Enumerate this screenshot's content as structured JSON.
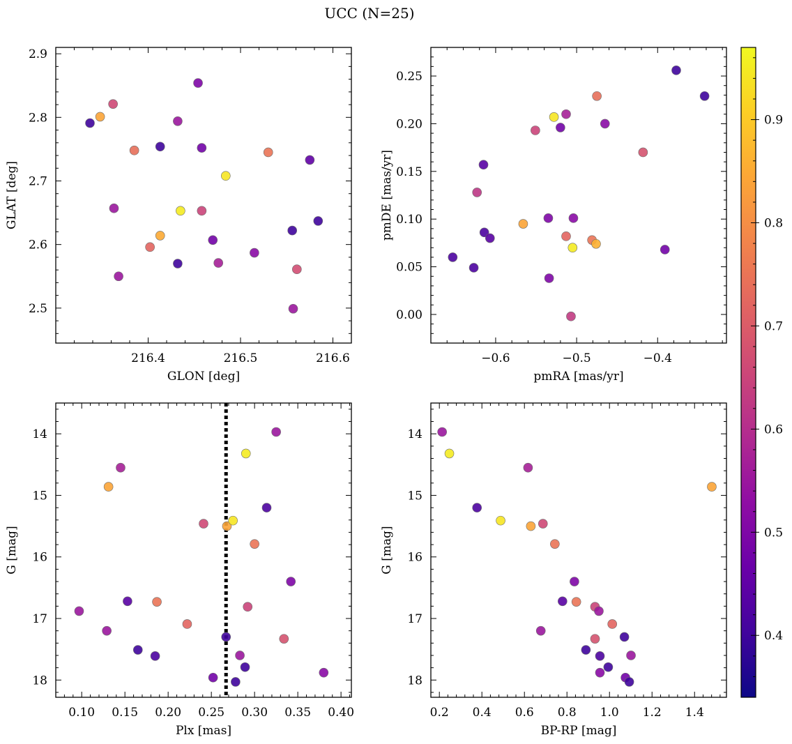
{
  "figure": {
    "title": "UCC (N=25)"
  },
  "colorbar": {
    "cmap": "plasma",
    "range": [
      0.34,
      0.97
    ],
    "ticks": [
      0.4,
      0.5,
      0.6,
      0.7,
      0.8,
      0.9
    ]
  },
  "chart_data": [
    {
      "type": "scatter",
      "panel": "top-left",
      "xlabel": "GLON [deg]",
      "ylabel": "GLAT [deg]",
      "xlim": [
        216.3,
        216.62
      ],
      "ylim": [
        2.445,
        2.91
      ],
      "xticks": [
        216.4,
        216.5,
        216.6
      ],
      "xtick_labels": [
        "216.4",
        "216.5",
        "216.6"
      ],
      "yticks": [
        2.5,
        2.6,
        2.7,
        2.8,
        2.9
      ],
      "ytick_labels": [
        "2.5",
        "2.6",
        "2.7",
        "2.8",
        "2.9"
      ],
      "inverted_y": false,
      "points": [
        {
          "x": 216.337,
          "y": 2.791,
          "c": 0.4
        },
        {
          "x": 216.348,
          "y": 2.801,
          "c": 0.84
        },
        {
          "x": 216.362,
          "y": 2.821,
          "c": 0.66
        },
        {
          "x": 216.363,
          "y": 2.657,
          "c": 0.55
        },
        {
          "x": 216.368,
          "y": 2.55,
          "c": 0.55
        },
        {
          "x": 216.385,
          "y": 2.748,
          "c": 0.74
        },
        {
          "x": 216.402,
          "y": 2.596,
          "c": 0.72
        },
        {
          "x": 216.413,
          "y": 2.754,
          "c": 0.4
        },
        {
          "x": 216.413,
          "y": 2.614,
          "c": 0.85
        },
        {
          "x": 216.432,
          "y": 2.794,
          "c": 0.55
        },
        {
          "x": 216.432,
          "y": 2.57,
          "c": 0.4
        },
        {
          "x": 216.435,
          "y": 2.653,
          "c": 0.95
        },
        {
          "x": 216.454,
          "y": 2.854,
          "c": 0.5
        },
        {
          "x": 216.458,
          "y": 2.752,
          "c": 0.48
        },
        {
          "x": 216.458,
          "y": 2.653,
          "c": 0.65
        },
        {
          "x": 216.47,
          "y": 2.607,
          "c": 0.48
        },
        {
          "x": 216.476,
          "y": 2.571,
          "c": 0.57
        },
        {
          "x": 216.484,
          "y": 2.708,
          "c": 0.94
        },
        {
          "x": 216.515,
          "y": 2.587,
          "c": 0.52
        },
        {
          "x": 216.53,
          "y": 2.745,
          "c": 0.75
        },
        {
          "x": 216.556,
          "y": 2.622,
          "c": 0.4
        },
        {
          "x": 216.557,
          "y": 2.499,
          "c": 0.55
        },
        {
          "x": 216.561,
          "y": 2.561,
          "c": 0.67
        },
        {
          "x": 216.575,
          "y": 2.733,
          "c": 0.45
        },
        {
          "x": 216.584,
          "y": 2.637,
          "c": 0.4
        }
      ]
    },
    {
      "type": "scatter",
      "panel": "top-right",
      "xlabel": "pmRA [mas/yr]",
      "ylabel": "pmDE [mas/yr]",
      "xlim": [
        -0.68,
        -0.315
      ],
      "ylim": [
        -0.03,
        0.28
      ],
      "xticks": [
        -0.6,
        -0.5,
        -0.4
      ],
      "xtick_labels": [
        "−0.6",
        "−0.5",
        "−0.4"
      ],
      "yticks": [
        0.0,
        0.05,
        0.1,
        0.15,
        0.2,
        0.25
      ],
      "ytick_labels": [
        "0.00",
        "0.05",
        "0.10",
        "0.15",
        "0.20",
        "0.25"
      ],
      "inverted_y": false,
      "points": [
        {
          "x": -0.653,
          "y": 0.06,
          "c": 0.42
        },
        {
          "x": -0.627,
          "y": 0.049,
          "c": 0.42
        },
        {
          "x": -0.623,
          "y": 0.128,
          "c": 0.62
        },
        {
          "x": -0.615,
          "y": 0.157,
          "c": 0.44
        },
        {
          "x": -0.614,
          "y": 0.086,
          "c": 0.42
        },
        {
          "x": -0.607,
          "y": 0.08,
          "c": 0.44
        },
        {
          "x": -0.566,
          "y": 0.095,
          "c": 0.84
        },
        {
          "x": -0.551,
          "y": 0.193,
          "c": 0.65
        },
        {
          "x": -0.535,
          "y": 0.101,
          "c": 0.5
        },
        {
          "x": -0.534,
          "y": 0.038,
          "c": 0.5
        },
        {
          "x": -0.528,
          "y": 0.207,
          "c": 0.94
        },
        {
          "x": -0.52,
          "y": 0.196,
          "c": 0.48
        },
        {
          "x": -0.513,
          "y": 0.21,
          "c": 0.57
        },
        {
          "x": -0.513,
          "y": 0.082,
          "c": 0.72
        },
        {
          "x": -0.507,
          "y": -0.002,
          "c": 0.63
        },
        {
          "x": -0.505,
          "y": 0.07,
          "c": 0.95
        },
        {
          "x": -0.504,
          "y": 0.101,
          "c": 0.52
        },
        {
          "x": -0.481,
          "y": 0.078,
          "c": 0.75
        },
        {
          "x": -0.476,
          "y": 0.074,
          "c": 0.86
        },
        {
          "x": -0.475,
          "y": 0.229,
          "c": 0.74
        },
        {
          "x": -0.465,
          "y": 0.2,
          "c": 0.52
        },
        {
          "x": -0.418,
          "y": 0.17,
          "c": 0.68
        },
        {
          "x": -0.391,
          "y": 0.068,
          "c": 0.48
        },
        {
          "x": -0.377,
          "y": 0.256,
          "c": 0.4
        },
        {
          "x": -0.342,
          "y": 0.229,
          "c": 0.4
        }
      ]
    },
    {
      "type": "scatter",
      "panel": "bottom-left",
      "xlabel": "Plx [mas]",
      "ylabel": "G [mag]",
      "xlim": [
        0.07,
        0.412
      ],
      "ylim": [
        18.28,
        13.5
      ],
      "xticks": [
        0.1,
        0.15,
        0.2,
        0.25,
        0.3,
        0.35,
        0.4
      ],
      "xtick_labels": [
        "0.10",
        "0.15",
        "0.20",
        "0.25",
        "0.30",
        "0.35",
        "0.40"
      ],
      "yticks": [
        14,
        15,
        16,
        17,
        18
      ],
      "ytick_labels": [
        "14",
        "15",
        "16",
        "17",
        "18"
      ],
      "inverted_y": true,
      "vline": {
        "x": 0.267,
        "style": "dotted"
      },
      "points": [
        {
          "x": 0.097,
          "y": 16.88,
          "c": 0.55
        },
        {
          "x": 0.129,
          "y": 17.2,
          "c": 0.55
        },
        {
          "x": 0.131,
          "y": 14.86,
          "c": 0.84
        },
        {
          "x": 0.145,
          "y": 14.55,
          "c": 0.57
        },
        {
          "x": 0.153,
          "y": 16.72,
          "c": 0.44
        },
        {
          "x": 0.165,
          "y": 17.51,
          "c": 0.4
        },
        {
          "x": 0.185,
          "y": 17.61,
          "c": 0.42
        },
        {
          "x": 0.187,
          "y": 16.73,
          "c": 0.75
        },
        {
          "x": 0.222,
          "y": 17.09,
          "c": 0.72
        },
        {
          "x": 0.241,
          "y": 15.46,
          "c": 0.66
        },
        {
          "x": 0.252,
          "y": 17.96,
          "c": 0.48
        },
        {
          "x": 0.267,
          "y": 17.3,
          "c": 0.4
        },
        {
          "x": 0.268,
          "y": 15.5,
          "c": 0.84
        },
        {
          "x": 0.275,
          "y": 15.41,
          "c": 0.94
        },
        {
          "x": 0.278,
          "y": 18.03,
          "c": 0.4
        },
        {
          "x": 0.283,
          "y": 17.6,
          "c": 0.55
        },
        {
          "x": 0.289,
          "y": 17.79,
          "c": 0.4
        },
        {
          "x": 0.29,
          "y": 14.32,
          "c": 0.95
        },
        {
          "x": 0.292,
          "y": 16.81,
          "c": 0.65
        },
        {
          "x": 0.3,
          "y": 15.79,
          "c": 0.75
        },
        {
          "x": 0.314,
          "y": 15.2,
          "c": 0.42
        },
        {
          "x": 0.325,
          "y": 13.97,
          "c": 0.55
        },
        {
          "x": 0.334,
          "y": 17.33,
          "c": 0.68
        },
        {
          "x": 0.342,
          "y": 16.4,
          "c": 0.5
        },
        {
          "x": 0.38,
          "y": 17.88,
          "c": 0.52
        }
      ]
    },
    {
      "type": "scatter",
      "panel": "bottom-right",
      "xlabel": "BP-RP [mag]",
      "ylabel": "G [mag]",
      "xlim": [
        0.16,
        1.55
      ],
      "ylim": [
        18.28,
        13.5
      ],
      "xticks": [
        0.2,
        0.4,
        0.6,
        0.8,
        1.0,
        1.2,
        1.4
      ],
      "xtick_labels": [
        "0.2",
        "0.4",
        "0.6",
        "0.8",
        "1.0",
        "1.2",
        "1.4"
      ],
      "yticks": [
        14,
        15,
        16,
        17,
        18
      ],
      "ytick_labels": [
        "14",
        "15",
        "16",
        "17",
        "18"
      ],
      "inverted_y": true,
      "points": [
        {
          "x": 0.213,
          "y": 13.97,
          "c": 0.55
        },
        {
          "x": 0.247,
          "y": 14.32,
          "c": 0.95
        },
        {
          "x": 0.377,
          "y": 15.2,
          "c": 0.42
        },
        {
          "x": 0.488,
          "y": 15.41,
          "c": 0.94
        },
        {
          "x": 0.617,
          "y": 14.55,
          "c": 0.57
        },
        {
          "x": 0.63,
          "y": 15.5,
          "c": 0.84
        },
        {
          "x": 0.677,
          "y": 17.2,
          "c": 0.55
        },
        {
          "x": 0.687,
          "y": 15.46,
          "c": 0.66
        },
        {
          "x": 0.743,
          "y": 15.79,
          "c": 0.75
        },
        {
          "x": 0.779,
          "y": 16.72,
          "c": 0.44
        },
        {
          "x": 0.835,
          "y": 16.4,
          "c": 0.5
        },
        {
          "x": 0.844,
          "y": 16.73,
          "c": 0.75
        },
        {
          "x": 0.889,
          "y": 17.51,
          "c": 0.4
        },
        {
          "x": 0.932,
          "y": 16.81,
          "c": 0.65
        },
        {
          "x": 0.932,
          "y": 17.33,
          "c": 0.68
        },
        {
          "x": 0.95,
          "y": 16.88,
          "c": 0.55
        },
        {
          "x": 0.955,
          "y": 17.61,
          "c": 0.42
        },
        {
          "x": 0.955,
          "y": 17.88,
          "c": 0.52
        },
        {
          "x": 0.994,
          "y": 17.79,
          "c": 0.4
        },
        {
          "x": 1.013,
          "y": 17.09,
          "c": 0.72
        },
        {
          "x": 1.07,
          "y": 17.3,
          "c": 0.4
        },
        {
          "x": 1.075,
          "y": 17.96,
          "c": 0.48
        },
        {
          "x": 1.093,
          "y": 18.03,
          "c": 0.4
        },
        {
          "x": 1.101,
          "y": 17.6,
          "c": 0.55
        },
        {
          "x": 1.481,
          "y": 14.86,
          "c": 0.84
        }
      ]
    }
  ]
}
